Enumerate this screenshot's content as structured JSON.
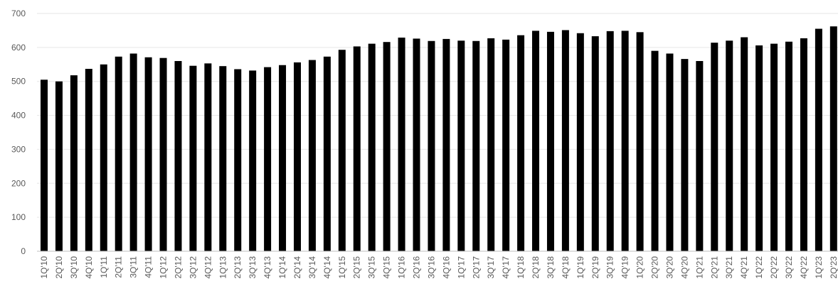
{
  "chart_data": {
    "type": "bar",
    "categories": [
      "1Q'10",
      "2Q'10",
      "3Q'10",
      "4Q'10",
      "1Q'11",
      "2Q'11",
      "3Q'11",
      "4Q'11",
      "1Q'12",
      "2Q'12",
      "3Q'12",
      "4Q'12",
      "1Q'13",
      "2Q'13",
      "3Q'13",
      "4Q'13",
      "1Q'14",
      "2Q'14",
      "3Q'14",
      "4Q'14",
      "1Q'15",
      "2Q'15",
      "3Q'15",
      "4Q'15",
      "1Q'16",
      "2Q'16",
      "3Q'16",
      "4Q'16",
      "1Q'17",
      "2Q'17",
      "3Q'17",
      "4Q'17",
      "1Q'18",
      "2Q'18",
      "3Q'18",
      "4Q'18",
      "1Q'19",
      "2Q'19",
      "3Q'19",
      "4Q'19",
      "1Q'20",
      "2Q'20",
      "3Q'20",
      "4Q'20",
      "1Q'21",
      "2Q'21",
      "3Q'21",
      "4Q'21",
      "1Q'22",
      "2Q'22",
      "3Q'22",
      "4Q'22",
      "1Q'23",
      "2Q'23"
    ],
    "values": [
      505,
      500,
      518,
      537,
      550,
      573,
      582,
      571,
      569,
      560,
      546,
      553,
      545,
      536,
      532,
      542,
      548,
      556,
      563,
      573,
      593,
      603,
      611,
      616,
      629,
      626,
      619,
      625,
      620,
      619,
      627,
      623,
      636,
      649,
      646,
      651,
      642,
      633,
      648,
      649,
      645,
      590,
      582,
      566,
      560,
      614,
      620,
      630,
      606,
      611,
      617,
      627,
      655,
      662
    ],
    "title": "",
    "xlabel": "",
    "ylabel": "",
    "ylim": [
      0,
      700
    ],
    "yticks": [
      "0",
      "100",
      "200",
      "300",
      "400",
      "500",
      "600",
      "700"
    ],
    "grid": true,
    "legend": "none",
    "bar_color": "#000000"
  }
}
